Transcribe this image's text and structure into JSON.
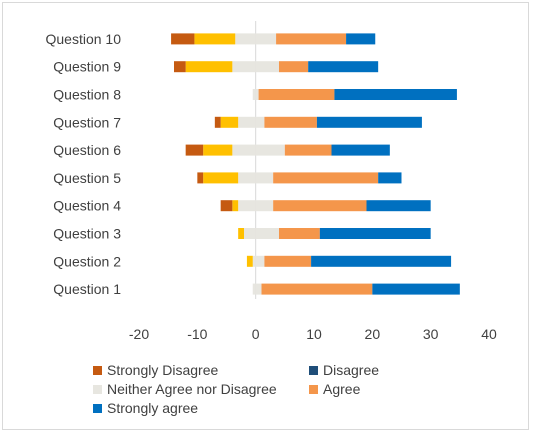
{
  "chart_data": {
    "type": "bar",
    "orientation": "horizontal",
    "stacked": true,
    "diverging": true,
    "categories": [
      "Question 1",
      "Question 2",
      "Question 3",
      "Question 4",
      "Question 5",
      "Question 6",
      "Question 7",
      "Question 8",
      "Question 9",
      "Question 10"
    ],
    "series": [
      {
        "name": "Strongly Disagree",
        "color": "#c55a11",
        "values": [
          0,
          0,
          0,
          -2,
          -1,
          -3,
          -1,
          0,
          -2,
          -4
        ]
      },
      {
        "name": "Disagree",
        "color": "#1f4e79",
        "values": [
          0,
          0,
          0,
          0,
          0,
          0,
          0,
          0,
          0,
          0
        ]
      },
      {
        "name": "Neither Agree nor Disagree",
        "color": "#e7e6e0",
        "values": [
          1,
          1.5,
          4,
          3,
          3,
          5,
          1.5,
          0.5,
          4,
          3.5
        ]
      },
      {
        "name": "Agree",
        "color": "#f4964b",
        "values": [
          19,
          8,
          7,
          16,
          18,
          8,
          9,
          13,
          5,
          12
        ]
      },
      {
        "name": "Strongly agree",
        "color": "#0070c0",
        "values": [
          15,
          24,
          19,
          11,
          4,
          10,
          18,
          21,
          12,
          5
        ]
      }
    ],
    "neutral_negative": [
      -0.5,
      -0.5,
      -2,
      -3,
      -3,
      -4,
      -3,
      -0.5,
      -4,
      -3.5
    ],
    "disagree_fill": [
      0,
      -1,
      -1,
      -1,
      -6,
      -5,
      -3,
      0,
      -8,
      -7
    ],
    "disagree_fill_color": "#ffc000",
    "xlim": [
      -20,
      40
    ],
    "xticks": [
      "-20",
      "-10",
      "0",
      "10",
      "20",
      "30",
      "40"
    ],
    "tick_values": [
      -20,
      -10,
      0,
      10,
      20,
      30,
      40
    ],
    "grid": false,
    "legend_position": "bottom"
  }
}
